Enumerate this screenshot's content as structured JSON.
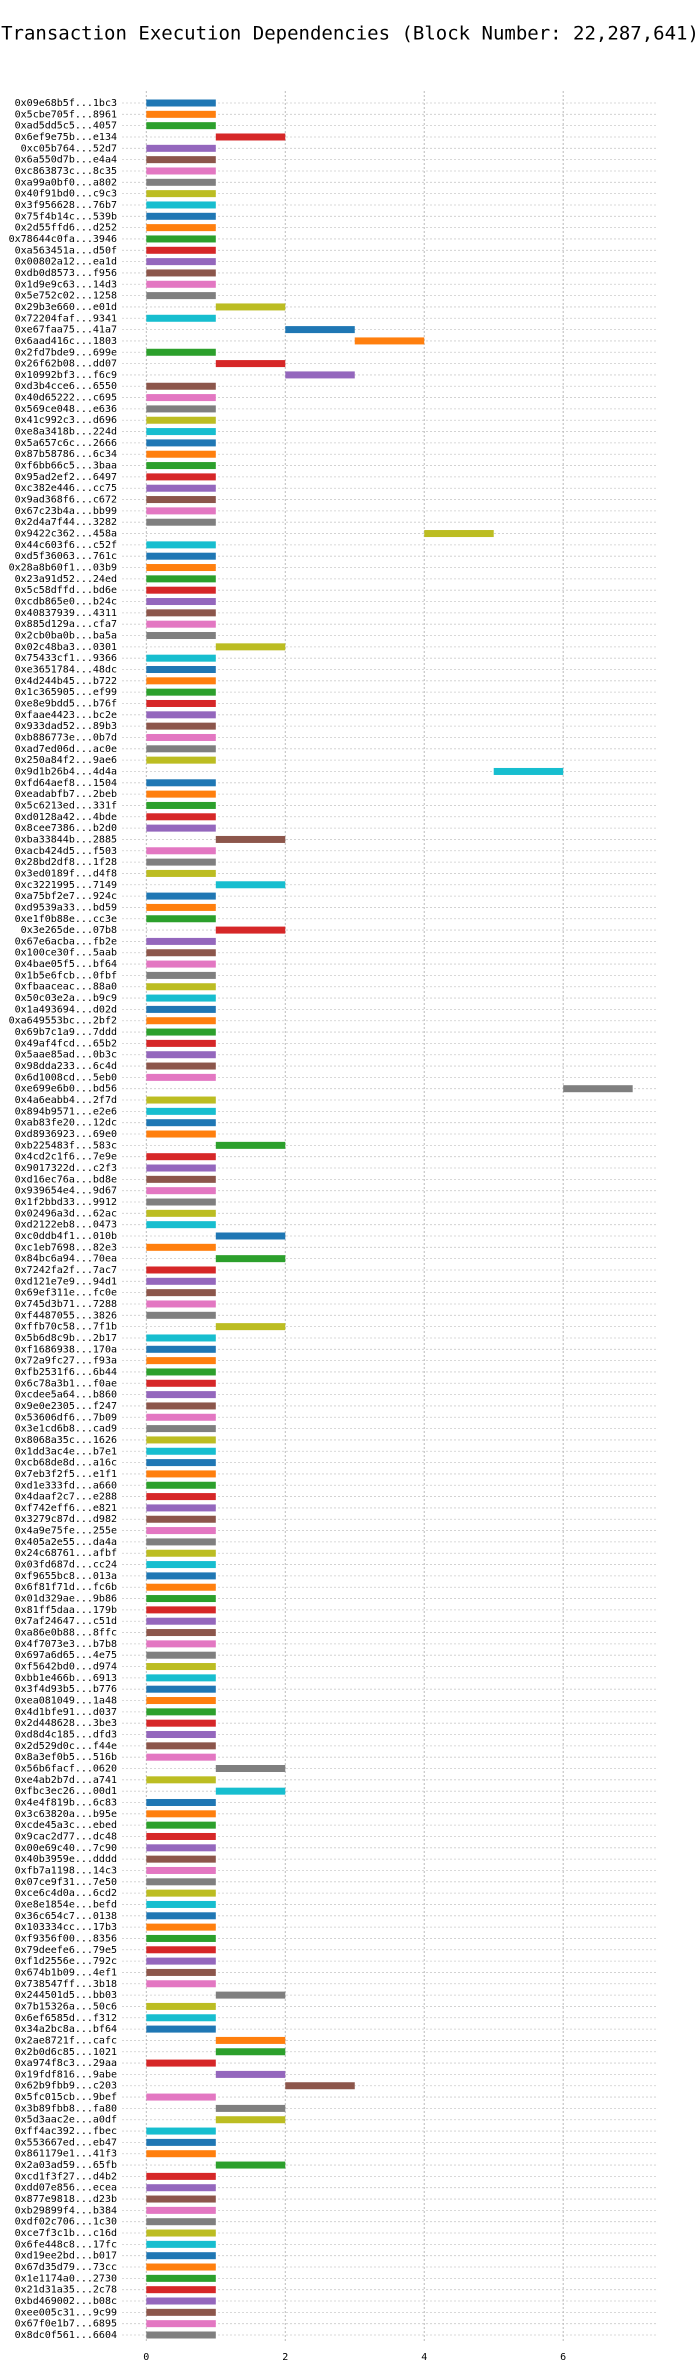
{
  "chart_data": {
    "type": "gantt",
    "title": "Transaction Execution Dependencies (Block Number: 22,287,641)",
    "categories": [
      "0x09e68b5f...1bc3",
      "0x5cbe705f...8961",
      "0xad5dd5c5...4057",
      "0x6ef9e75b...e134",
      "0xc05b764...52d7",
      "0x6a550d7b...e4a4",
      "0xc863873c...8c35",
      "0xa99a0bf0...a802",
      "0x40f91bd0...c9c3",
      "0x3f956628...76b7",
      "0x75f4b14c...539b",
      "0x2d55ffd6...d252",
      "0x78644c0fa...3946",
      "0xa563451a...d50f",
      "0x00802a12...ea1d",
      "0xdb0d8573...f956",
      "0x1d9e9c63...14d3",
      "0x5e752c02...1258",
      "0x29b3e660...e01d",
      "0x72204faf...9341",
      "0xe67faa75...41a7",
      "0x6aad416c...1803",
      "0x2fd7bde9...699e",
      "0x26f62b08...dd07",
      "0x10992bf3...f6c9",
      "0xd3b4cce6...6550",
      "0x40d65222...c695",
      "0x569ce048...e636",
      "0x41c992c3...d696",
      "0xe8a3418b...224d",
      "0x5a657c6c...2666",
      "0x87b58786...6c34",
      "0xf6bb66c5...3baa",
      "0x95ad2ef2...6497",
      "0xc382e446...cc75",
      "0x9ad368f6...c672",
      "0x67c23b4a...bb99",
      "0x2d4a7f44...3282",
      "0x9422c362...458a",
      "0x44c603f6...c52f",
      "0xd5f36063...761c",
      "0x28a8b60f1...03b9",
      "0x23a91d52...24ed",
      "0x5c58dffd...bd6e",
      "0xcdb865e0...b24c",
      "0x40837939...4311",
      "0x885d129a...cfa7",
      "0x2cb0ba0b...ba5a",
      "0x02c48ba3...0301",
      "0x75433cf1...9366",
      "0xe3651784...48dc",
      "0x4d244b45...b722",
      "0x1c365905...ef99",
      "0xe8e9bdd5...b76f",
      "0xfaae4423...bc2e",
      "0x933dad52...89b3",
      "0xb886773e...0b7d",
      "0xad7ed06d...ac0e",
      "0x250a84f2...9ae6",
      "0x9d1b26b4...4d4a",
      "0xfd64aef8...1504",
      "0xeadabfb7...2beb",
      "0x5c6213ed...331f",
      "0xd0128a42...4bde",
      "0x8cee7386...b2d0",
      "0xba33844b...2885",
      "0xacb424d5...f503",
      "0x28bd2df8...1f28",
      "0x3ed0189f...d4f8",
      "0xc3221995...7149",
      "0xa75bf2e7...924c",
      "0xd9539a33...bd59",
      "0xe1f0b88e...cc3e",
      "0x3e265de...07b8",
      "0x67e6acba...fb2e",
      "0x100ce30f...5aab",
      "0x4bae05f5...bf64",
      "0x1b5e6fcb...0fbf",
      "0xfbaaceac...88a0",
      "0x50c03e2a...b9c9",
      "0x1a493694...d02d",
      "0xa649553bc...2bf2",
      "0x69b7c1a9...7ddd",
      "0x49af4fcd...65b2",
      "0x5aae85ad...0b3c",
      "0x98dda233...6c4d",
      "0x6d1008cd...5eb0",
      "0xe699e6b0...bd56",
      "0x4a6eabb4...2f7d",
      "0x894b9571...e2e6",
      "0xab83fe20...12dc",
      "0xd8936923...69e0",
      "0xb225483f...583c",
      "0x4cd2c1f6...7e9e",
      "0x9017322d...c2f3",
      "0xd16ec76a...bd8e",
      "0x939654e4...9d67",
      "0x1f2bbd33...9912",
      "0x02496a3d...62ac",
      "0xd2122eb8...0473",
      "0xc0ddb4f1...010b",
      "0xc1eb7698...82e3",
      "0x84bc6a94...70ea",
      "0x7242fa2f...7ac7",
      "0xd121e7e9...94d1",
      "0x69ef311e...fc0e",
      "0x745d3b71...7288",
      "0xf4487055...3826",
      "0xffb70c58...7f1b",
      "0x5b6d8c9b...2b17",
      "0xf1686938...170a",
      "0x72a9fc27...f93a",
      "0xfb2531f6...6b44",
      "0x6c78a3b1...f0ae",
      "0xcdee5a64...b860",
      "0x9e0e2305...f247",
      "0x53606df6...7b09",
      "0x3e1cd6b8...cad9",
      "0x8068a35c...1626",
      "0x1dd3ac4e...b7e1",
      "0xcb68de8d...a16c",
      "0x7eb3f2f5...e1f1",
      "0xd1e333fd...a660",
      "0x4daaf2c7...e288",
      "0xf742eff6...e821",
      "0x3279c87d...d982",
      "0x4a9e75fe...255e",
      "0x405a2e55...da4a",
      "0x24c68761...afbf",
      "0x03fd687d...cc24",
      "0xf9655bc8...013a",
      "0x6f81f71d...fc6b",
      "0x01d329ae...9b86",
      "0x81ff5daa...179b",
      "0x7af24647...c51d",
      "0xa86e0b88...8ffc",
      "0x4f7073e3...b7b8",
      "0x697a6d65...4e75",
      "0xf5642bd0...d974",
      "0xbb1e466b...6913",
      "0x3f4d93b5...b776",
      "0xea081049...1a48",
      "0x4d1bfe91...d037",
      "0x2d448628...3be3",
      "0xd8d4c185...dfd3",
      "0x2d529d0c...f44e",
      "0x8a3ef0b5...516b",
      "0x56b6facf...0620",
      "0xe4ab2b7d...a741",
      "0xfbc3ec26...00d1",
      "0x4e4f819b...6c83",
      "0x3c63820a...b95e",
      "0xcde45a3c...ebed",
      "0x9cac2d77...dc48",
      "0x00e69c40...7c90",
      "0x40b3959e...dddd",
      "0xfb7a1198...14c3",
      "0x07ce9f31...7e50",
      "0xce6c4d0a...6cd2",
      "0xe8e1854e...befd",
      "0x36c654c7...0138",
      "0x103334cc...17b3",
      "0xf9356f00...8356",
      "0x79deefe6...79e5",
      "0xf1d2556e...792c",
      "0x674b1b09...4ef1",
      "0x738547ff...3b18",
      "0x244501d5...bb03",
      "0x7b15326a...50c6",
      "0x6ef6585d...f312",
      "0x34a2bc8a...bf64",
      "0x2ae8721f...cafc",
      "0x2b0d6c85...1021",
      "0xa974f8c3...29aa",
      "0x19fdf816...9abe",
      "0x62b9fbb9...c203",
      "0x5fc015cb...9bef",
      "0x3b89fbb8...fa80",
      "0x5d3aac2e...a0df",
      "0xff4ac392...fbec",
      "0x553667ed...eb47",
      "0x861179e1...41f3",
      "0x2a03ad59...65fb",
      "0xcd1f3f27...d4b2",
      "0xdd07e856...ecea",
      "0x877e9818...d23b",
      "0xb29899f4...b384",
      "0xdf02c706...1c30",
      "0xce7f3c1b...c16d",
      "0x6fe448c8...17fc",
      "0xd19ee2bd...b017",
      "0x67d35d79...73cc",
      "0x1e1174a0...2730",
      "0x21d31a35...2c78",
      "0xbd469002...b08c",
      "0xee005c31...9c99",
      "0x67f0e1b7...6895",
      "0x8dc0f561...6604"
    ],
    "values": [
      0,
      0,
      0,
      1,
      0,
      0,
      0,
      0,
      0,
      0,
      0,
      0,
      0,
      0,
      0,
      0,
      0,
      0,
      1,
      0,
      2,
      3,
      0,
      1,
      2,
      0,
      0,
      0,
      0,
      0,
      0,
      0,
      0,
      0,
      0,
      0,
      0,
      0,
      4,
      0,
      0,
      0,
      0,
      0,
      0,
      0,
      0,
      0,
      1,
      0,
      0,
      0,
      0,
      0,
      0,
      0,
      0,
      0,
      0,
      5,
      0,
      0,
      0,
      0,
      0,
      1,
      0,
      0,
      0,
      1,
      0,
      0,
      0,
      1,
      0,
      0,
      0,
      0,
      0,
      0,
      0,
      0,
      0,
      0,
      0,
      0,
      0,
      6,
      0,
      0,
      0,
      0,
      1,
      0,
      0,
      0,
      0,
      0,
      0,
      0,
      1,
      0,
      1,
      0,
      0,
      0,
      0,
      0,
      1,
      0,
      0,
      0,
      0,
      0,
      0,
      0,
      0,
      0,
      0,
      0,
      0,
      0,
      0,
      0,
      0,
      0,
      0,
      0,
      0,
      0,
      0,
      0,
      0,
      0,
      0,
      0,
      0,
      0,
      0,
      0,
      0,
      0,
      0,
      0,
      0,
      0,
      0,
      1,
      0,
      1,
      0,
      0,
      0,
      0,
      0,
      0,
      0,
      0,
      0,
      0,
      0,
      0,
      0,
      0,
      0,
      0,
      0,
      1,
      0,
      0,
      0,
      1,
      1,
      0,
      1,
      2,
      0,
      1,
      1,
      0,
      0,
      0,
      1,
      0,
      0,
      0,
      0,
      0,
      0,
      0,
      0,
      0,
      0,
      0,
      0,
      0,
      0,
      0
    ],
    "bar_width": 1,
    "colors": [
      "#1f77b4",
      "#ff7f0e",
      "#2ca02c",
      "#d62728",
      "#9467bd",
      "#8c564b",
      "#e377c2",
      "#7f7f7f",
      "#bcbd22",
      "#17becf"
    ],
    "xlim": [
      -0.35,
      7.35
    ],
    "xticks": [
      0,
      2,
      4,
      6
    ],
    "grid": true
  }
}
